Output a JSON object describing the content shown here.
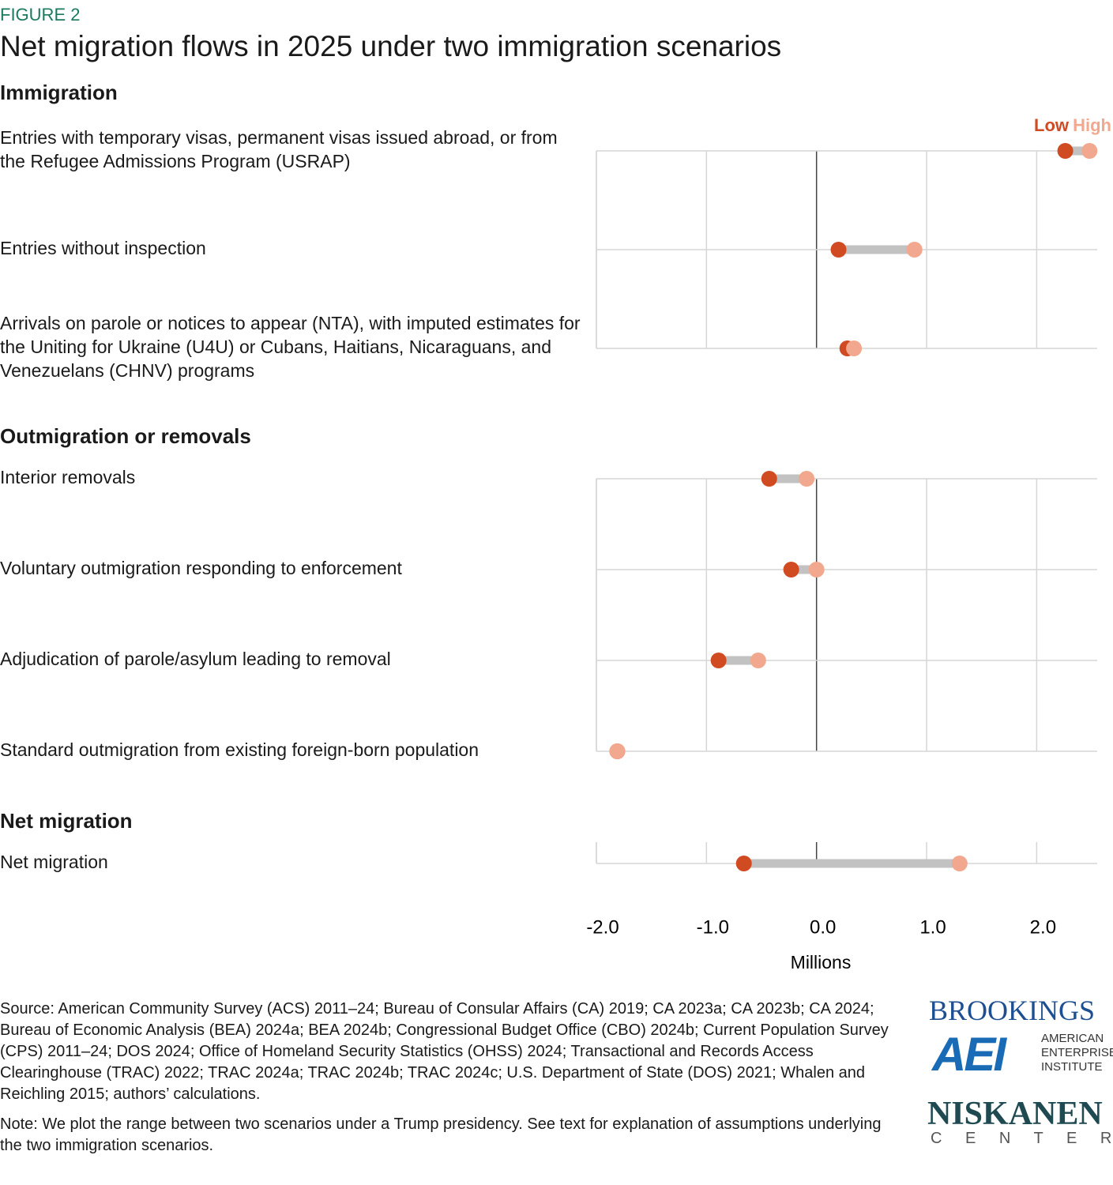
{
  "figure_label": "FIGURE 2",
  "title": "Net migration flows in 2025 under two immigration scenarios",
  "chart_data": {
    "type": "dumbbell",
    "legend": [
      {
        "name": "Low",
        "color": "#d04a22"
      },
      {
        "name": "High",
        "color": "#f2a88f"
      }
    ],
    "xlim": [
      -2.0,
      2.55
    ],
    "xticks": [
      {
        "value": -2,
        "label": "-2.0"
      },
      {
        "value": -1,
        "label": "-1.0"
      },
      {
        "value": 0,
        "label": "0.0"
      },
      {
        "value": 1,
        "label": "1.0"
      },
      {
        "value": 2,
        "label": "2.0"
      }
    ],
    "xlabel": "Millions",
    "grid": true,
    "groups": [
      {
        "title": "Immigration",
        "categories": [
          "Entries with temporary visas, permanent visas issued abroad, or from the Refugee Admissions Program (USRAP)",
          "Entries without inspection",
          "Arrivals on parole or notices to appear (NTA), with imputed estimates for the Uniting for Ukraine (U4U) or Cubans, Haitians, Nicaraguans, and Venezuelans (CHNV) programs"
        ],
        "series": [
          {
            "values": [
              2.26,
              0.2,
              0.28
            ]
          },
          {
            "values": [
              2.48,
              0.89,
              0.34
            ]
          }
        ]
      },
      {
        "title": "Outmigration or removals",
        "categories": [
          "Interior removals",
          "Voluntary outmigration responding to enforcement",
          "Adjudication of parole/asylum leading to removal",
          "Standard outmigration from existing foreign-born population"
        ],
        "series": [
          {
            "values": [
              -0.43,
              -0.23,
              -0.89,
              -1.81
            ]
          },
          {
            "values": [
              -0.09,
              0.0,
              -0.53,
              -1.81
            ]
          }
        ]
      },
      {
        "title": "Net migration",
        "categories": [
          "Net migration"
        ],
        "series": [
          {
            "values": [
              -0.66
            ]
          },
          {
            "values": [
              1.3
            ]
          }
        ]
      }
    ]
  },
  "source": "Source: American Community Survey (ACS) 2011–24; Bureau of Consular Affairs (CA) 2019; CA 2023a; CA 2023b; CA 2024; Bureau of Economic Analysis (BEA) 2024a; BEA 2024b; Congressional Budget Office (CBO) 2024b; Current Population Survey (CPS) 2011–24; DOS 2024; Office of Homeland Security Statistics (OHSS) 2024; Transactional and Records Access Clearinghouse (TRAC) 2022; TRAC 2024a; TRAC 2024b; TRAC 2024c; U.S. Department of State (DOS) 2021; Whalen and Reichling 2015; authors’ calculations.",
  "note": "Note: We plot the range between two scenarios under a Trump presidency. See text for explanation of assumptions underlying the two immigration scenarios.",
  "logos": {
    "brookings": "BROOKINGS",
    "aei": "AEI",
    "aei_name": "AMERICAN ENTERPRISE INSTITUTE",
    "niskanen": "NISKANEN",
    "niskanen_sub": "C E N T E R"
  }
}
